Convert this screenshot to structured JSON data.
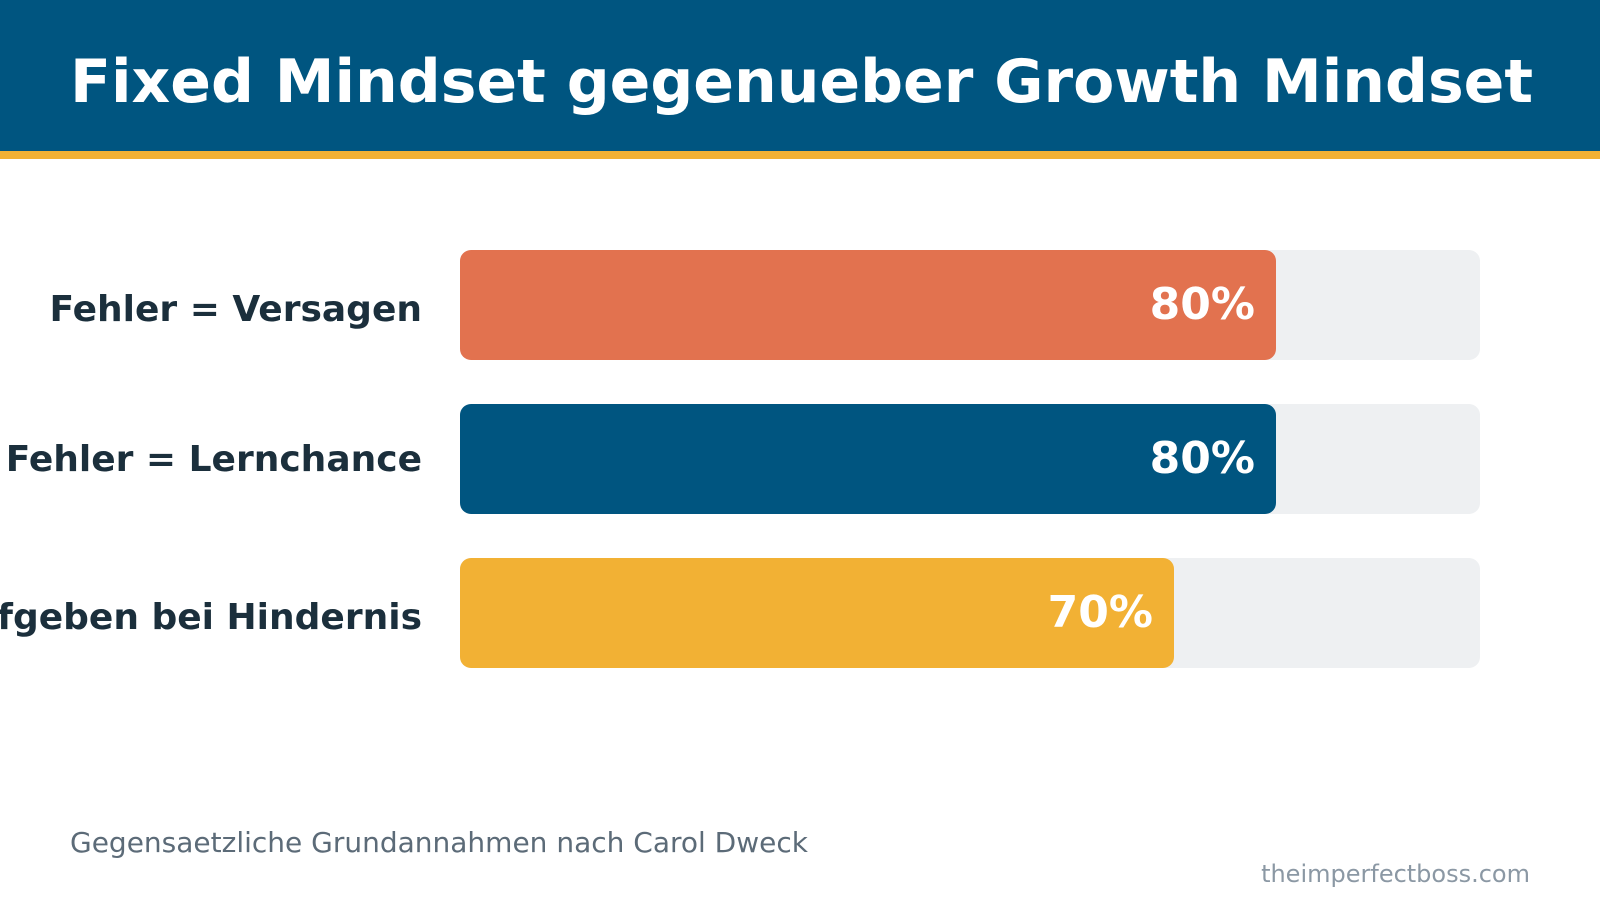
{
  "header": {
    "title": "Fixed Mindset gegenueber Growth Mindset"
  },
  "chart_data": {
    "type": "bar",
    "orientation": "horizontal",
    "title": "Fixed Mindset gegenueber Growth Mindset",
    "categories": [
      "Fehler = Versagen",
      "Fehler = Lernchance",
      "Aufgeben bei Hindernis"
    ],
    "values": [
      80,
      80,
      70
    ],
    "value_labels": [
      "80%",
      "80%",
      "70%"
    ],
    "xlim": [
      0,
      100
    ],
    "unit": "%",
    "grid": false,
    "legend": "none",
    "colors": [
      "#e2724f",
      "#005580",
      "#f2b134"
    ],
    "track_color": "#eef0f2"
  },
  "footer": {
    "caption": "Gegensaetzliche Grundannahmen nach Carol Dweck",
    "credit": "theimperfectboss.com"
  },
  "colors": {
    "header_background": "#005580",
    "accent": "#f2b134",
    "label_text": "#1b2f3c"
  }
}
